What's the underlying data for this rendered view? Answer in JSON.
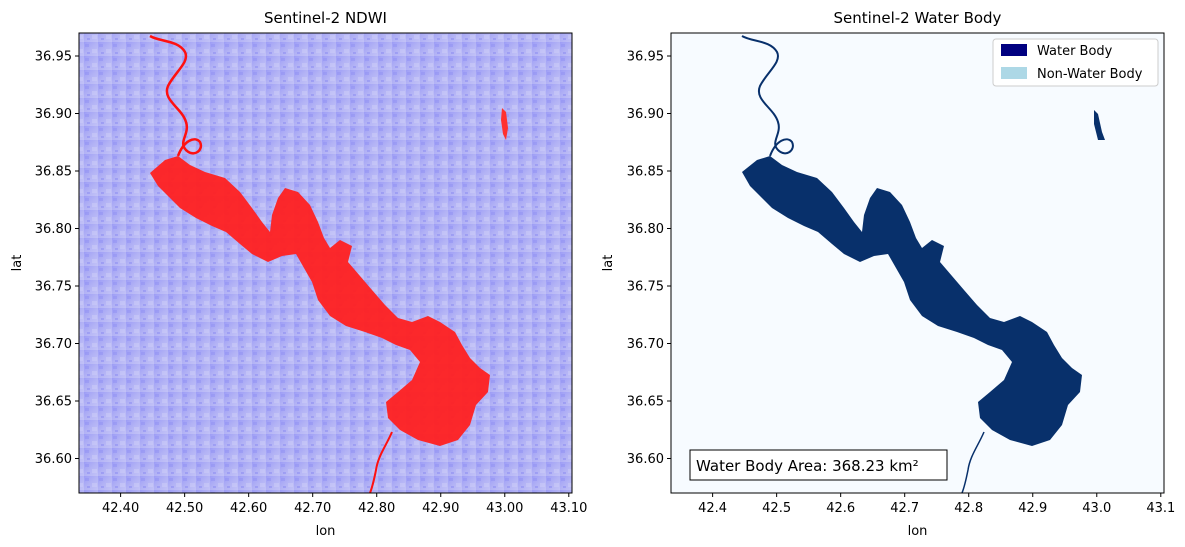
{
  "chart_data": [
    {
      "type": "heatmap",
      "title": "Sentinel-2 NDWI",
      "xlabel": "lon",
      "ylabel": "lat",
      "xlim": [
        42.335,
        43.105
      ],
      "ylim": [
        36.57,
        36.97
      ],
      "xticks": [
        42.4,
        42.5,
        42.6,
        42.7,
        42.8,
        42.9,
        43.0,
        43.1
      ],
      "xtick_labels": [
        "42.40",
        "42.50",
        "42.60",
        "42.70",
        "42.80",
        "42.90",
        "43.00",
        "43.10"
      ],
      "yticks": [
        36.95,
        36.9,
        36.85,
        36.8,
        36.75,
        36.7,
        36.65,
        36.6
      ],
      "ytick_labels": [
        "36.95",
        "36.90",
        "36.85",
        "36.80",
        "36.75",
        "36.70",
        "36.65",
        "36.60"
      ],
      "colormap": "bwr",
      "colors": {
        "background": "#a9a9f4",
        "water": "#ff1f1f",
        "river": "#ff0000"
      }
    },
    {
      "type": "heatmap",
      "title": "Sentinel-2 Water Body",
      "xlabel": "lon",
      "ylabel": "lat",
      "xlim": [
        42.335,
        43.105
      ],
      "ylim": [
        36.57,
        36.97
      ],
      "xticks": [
        42.4,
        42.5,
        42.6,
        42.7,
        42.8,
        42.9,
        43.0,
        43.1
      ],
      "xtick_labels": [
        "42.4",
        "42.5",
        "42.6",
        "42.7",
        "42.8",
        "42.9",
        "43.0",
        "43.1"
      ],
      "yticks": [
        36.95,
        36.9,
        36.85,
        36.8,
        36.75,
        36.7,
        36.65,
        36.6
      ],
      "ytick_labels": [
        "36.95",
        "36.90",
        "36.85",
        "36.80",
        "36.75",
        "36.70",
        "36.65",
        "36.60"
      ],
      "legend": [
        {
          "label": "Water Body",
          "color": "#000080"
        },
        {
          "label": "Non-Water Body",
          "color": "#add8e6"
        }
      ],
      "legend_position": "top-right",
      "annotation": "Water Body Area: 368.23 km²",
      "colors": {
        "background": "#f7fbff",
        "water": "#08306b"
      }
    }
  ]
}
